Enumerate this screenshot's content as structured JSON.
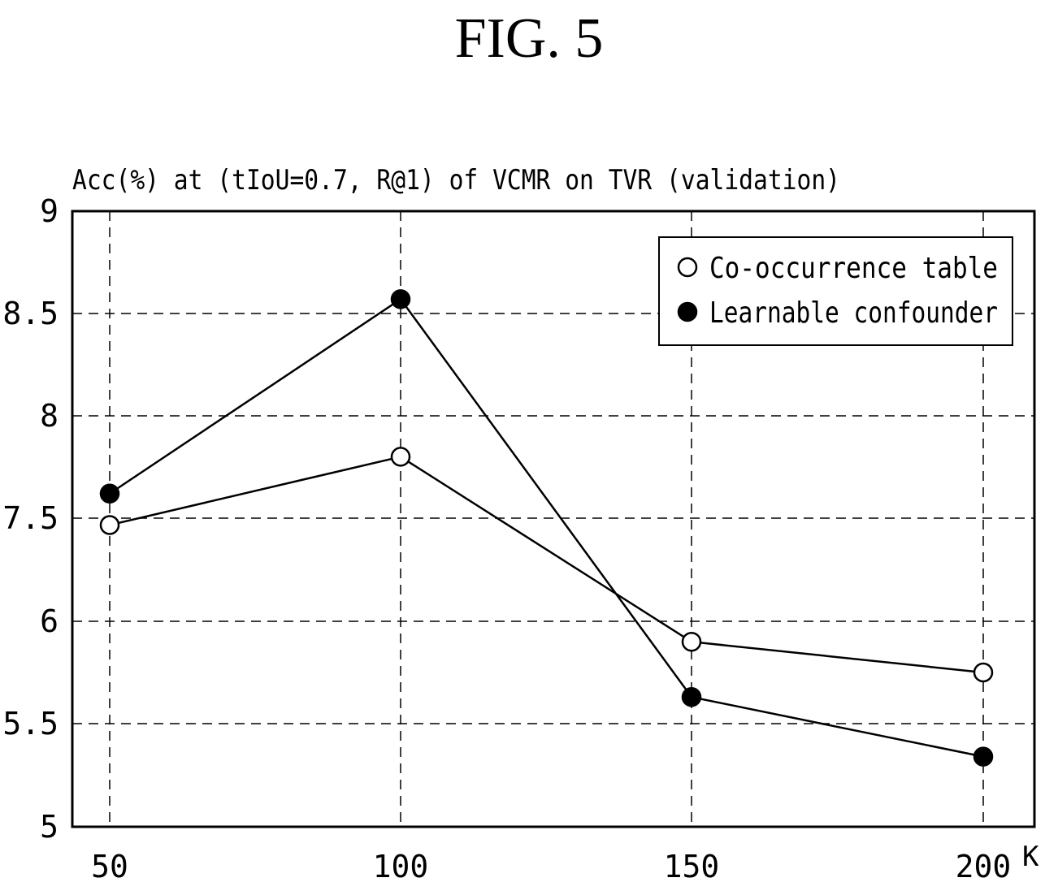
{
  "figure_label": "FIG. 5",
  "chart_data": {
    "type": "line",
    "ylabel": "Acc(%) at (tIoU=0.7, R@1) of VCMR on TVR (validation)",
    "xlabel": "K",
    "categories": [
      "50",
      "100",
      "150",
      "200"
    ],
    "x": [
      50,
      100,
      150,
      200
    ],
    "y_tick_labels": [
      "5",
      "5.5",
      "6",
      "7.5",
      "8",
      "8.5",
      "9"
    ],
    "series": [
      {
        "name": "Co-occurrence table",
        "marker": "open-circle",
        "values": [
          7.4,
          7.8,
          5.9,
          5.75
        ]
      },
      {
        "name": "Learnable confounder",
        "marker": "filled-circle",
        "values": [
          7.62,
          8.57,
          5.63,
          5.34
        ]
      }
    ],
    "grid": true,
    "legend_position": "top-right",
    "colors": {
      "line": "#000000",
      "grid": "#000000",
      "background": "#ffffff"
    }
  }
}
